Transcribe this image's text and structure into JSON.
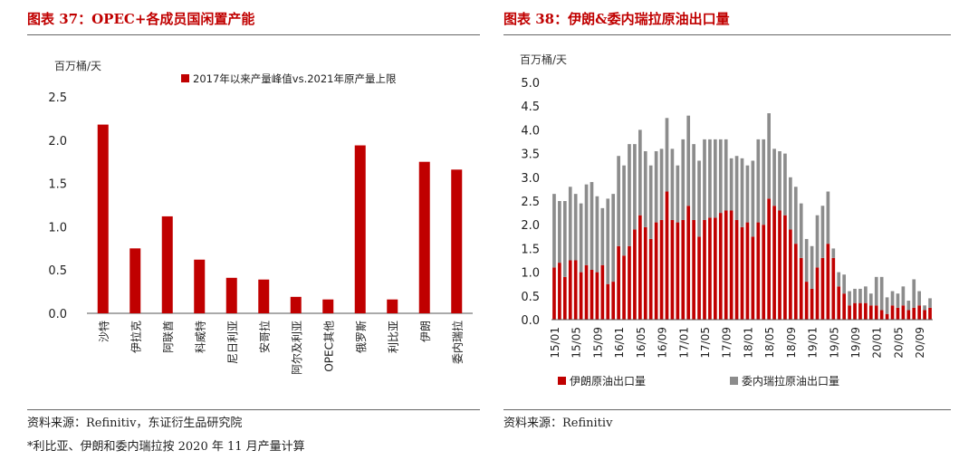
{
  "left": {
    "title": "图表 37：OPEC+各成员国闲置产能",
    "source": "资料来源：Refinitiv，东证衍生品研究院",
    "note": "*利比亚、伊朗和委内瑞拉按 2020 年 11 月产量计算"
  },
  "right": {
    "title": "图表 38：伊朗&委内瑞拉原油出口量",
    "source": "资料来源：Refinitiv"
  },
  "colors": {
    "red": "#c00000",
    "gray": "#8c8c8c",
    "title": "#c00000"
  },
  "chart_data": [
    {
      "type": "bar",
      "ylabel": "百万桶/天",
      "ylim": [
        0,
        2.5
      ],
      "yticks": [
        "0.0",
        "0.5",
        "1.0",
        "1.5",
        "2.0",
        "2.5"
      ],
      "legend_position": "top-right",
      "series": [
        {
          "name": "2017年以来产量峰值vs.2021年原产量上限",
          "values": [
            2.18,
            0.75,
            1.12,
            0.62,
            0.41,
            0.39,
            0.19,
            0.16,
            1.94,
            0.16,
            1.75,
            1.66
          ]
        }
      ],
      "categories": [
        "沙特",
        "伊拉克",
        "阿联酋",
        "科威特",
        "尼日利亚",
        "安哥拉",
        "阿尔及利亚",
        "OPEC其他",
        "俄罗斯",
        "利比亚",
        "伊朗",
        "委内瑞拉"
      ]
    },
    {
      "type": "bar",
      "stacked": true,
      "ylabel": "百万桶/天",
      "ylim": [
        0,
        5.0
      ],
      "yticks": [
        "0.0",
        "0.5",
        "1.0",
        "1.5",
        "2.0",
        "2.5",
        "3.0",
        "3.5",
        "4.0",
        "4.5",
        "5.0"
      ],
      "legend_position": "bottom",
      "x": [
        "15/01",
        "15/02",
        "15/03",
        "15/04",
        "15/05",
        "15/06",
        "15/07",
        "15/08",
        "15/09",
        "15/10",
        "15/11",
        "15/12",
        "16/01",
        "16/02",
        "16/03",
        "16/04",
        "16/05",
        "16/06",
        "16/07",
        "16/08",
        "16/09",
        "16/10",
        "16/11",
        "16/12",
        "17/01",
        "17/02",
        "17/03",
        "17/04",
        "17/05",
        "17/06",
        "17/07",
        "17/08",
        "17/09",
        "17/10",
        "17/11",
        "17/12",
        "18/01",
        "18/02",
        "18/03",
        "18/04",
        "18/05",
        "18/06",
        "18/07",
        "18/08",
        "18/09",
        "18/10",
        "18/11",
        "18/12",
        "19/01",
        "19/02",
        "19/03",
        "19/04",
        "19/05",
        "19/06",
        "19/07",
        "19/08",
        "19/09",
        "19/10",
        "19/11",
        "19/12",
        "20/01",
        "20/02",
        "20/03",
        "20/04",
        "20/05",
        "20/06",
        "20/07",
        "20/08",
        "20/09",
        "20/10",
        "20/11"
      ],
      "xticks": [
        "15/01",
        "15/05",
        "15/09",
        "16/01",
        "16/05",
        "16/09",
        "17/01",
        "17/05",
        "17/09",
        "18/01",
        "18/05",
        "18/09",
        "19/01",
        "19/05",
        "19/09",
        "20/01",
        "20/05",
        "20/09"
      ],
      "series": [
        {
          "name": "伊朗原油出口量",
          "values": [
            1.1,
            1.2,
            0.9,
            1.25,
            1.25,
            1.0,
            1.15,
            1.05,
            1.0,
            1.15,
            0.75,
            0.8,
            1.55,
            1.35,
            1.55,
            1.9,
            2.2,
            1.95,
            1.7,
            2.05,
            2.1,
            2.7,
            2.1,
            2.05,
            2.1,
            2.4,
            2.1,
            1.75,
            2.1,
            2.15,
            2.15,
            2.25,
            2.3,
            2.3,
            2.1,
            1.95,
            2.05,
            1.75,
            2.05,
            2.0,
            2.55,
            2.4,
            2.3,
            2.2,
            1.9,
            1.6,
            1.3,
            0.8,
            0.65,
            1.1,
            1.3,
            1.6,
            1.3,
            0.7,
            0.55,
            0.3,
            0.35,
            0.35,
            0.35,
            0.3,
            0.3,
            0.2,
            0.12,
            0.3,
            0.25,
            0.3,
            0.2,
            0.25,
            0.3,
            0.2,
            0.25
          ]
        },
        {
          "name": "委内瑞拉原油出口量",
          "values": [
            1.55,
            1.3,
            1.6,
            1.55,
            1.4,
            1.45,
            1.7,
            1.85,
            1.6,
            1.2,
            1.8,
            1.85,
            1.9,
            1.9,
            2.15,
            1.8,
            1.8,
            1.6,
            1.55,
            1.5,
            1.5,
            1.55,
            1.5,
            1.2,
            1.7,
            1.9,
            1.6,
            1.6,
            1.7,
            1.65,
            1.65,
            1.55,
            1.5,
            1.1,
            1.35,
            1.45,
            1.2,
            1.6,
            1.75,
            1.8,
            1.8,
            1.2,
            1.25,
            1.3,
            1.1,
            1.2,
            1.15,
            0.9,
            0.9,
            1.1,
            1.1,
            1.1,
            0.2,
            0.3,
            0.4,
            0.3,
            0.3,
            0.3,
            0.35,
            0.25,
            0.6,
            0.7,
            0.35,
            0.3,
            0.3,
            0.4,
            0.2,
            0.6,
            0.3,
            0.1,
            0.2
          ]
        }
      ]
    }
  ]
}
